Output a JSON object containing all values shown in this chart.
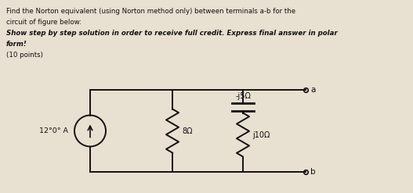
{
  "title_line1": "Find the Norton equivalent (using Norton method only) between terminals a-b for the",
  "title_line2": "circuit of figure below:",
  "title_line3": "Show step by step solution in order to receive full credit. Express final answer in polar",
  "title_line4": "form!",
  "title_line5": "(10 points)",
  "bg_color": "#e8e0d0",
  "text_color": "#111111",
  "source_label": "12°0° A",
  "r1_label": "8Ω",
  "cap_label": "-j5Ω",
  "r2_label": "j10Ω",
  "term_a": "a",
  "term_b": "b"
}
